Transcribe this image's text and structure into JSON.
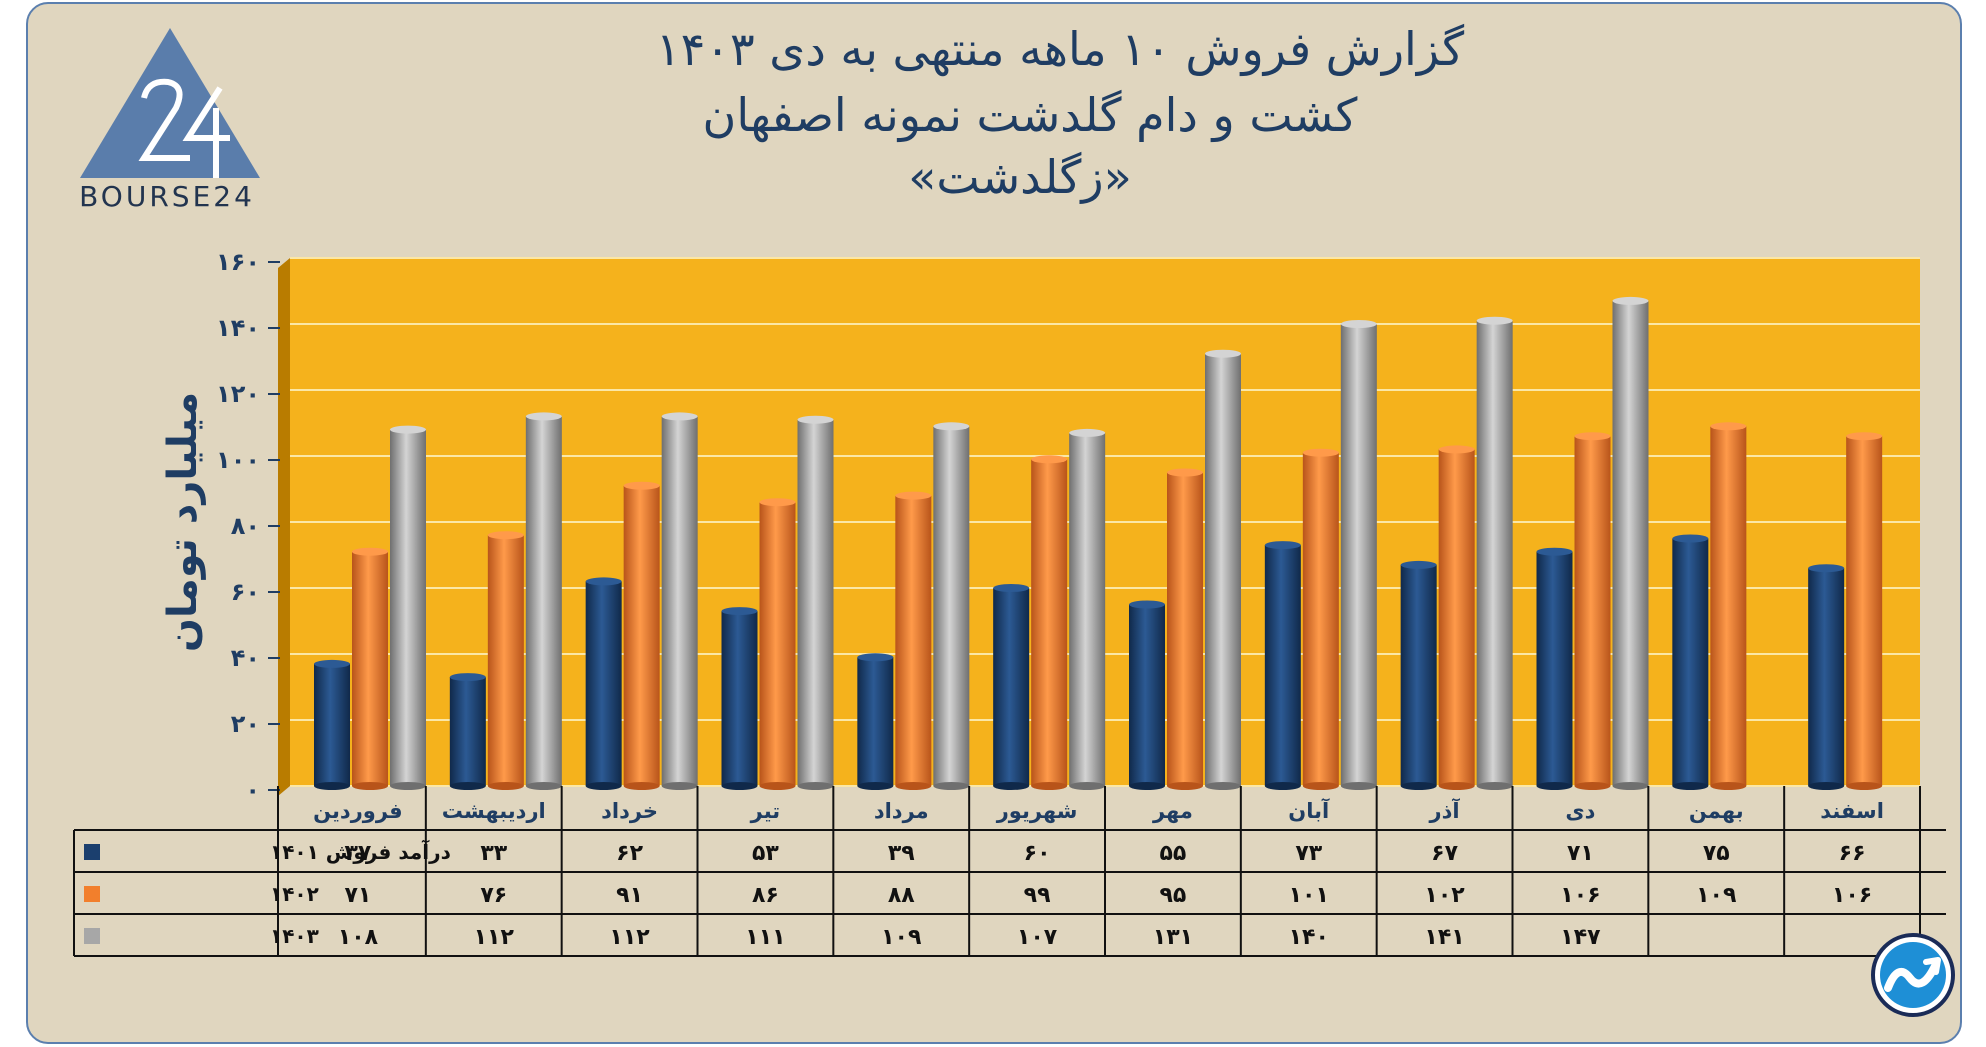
{
  "title": {
    "line1": "گزارش  فروش ۱۰ ماهه منتهی به دی ۱۴۰۳",
    "line2": "کشت و دام گلدشت نمونه اصفهان",
    "line3": "«زگلدشت»"
  },
  "logo": {
    "text": "BOURSE24"
  },
  "colors": {
    "series_1401": "#1b3f6e",
    "series_1402": "#f27f2c",
    "series_1403": "#a7a7a7",
    "plot_bg": "#f5b21c",
    "wall_side": "#b97c00",
    "frame_bg": "#e0d6bf",
    "axis_text": "#1f3d63"
  },
  "icons": {
    "corner_badge": "trend-chart-icon"
  },
  "chart_data": {
    "type": "bar",
    "ylabel": "میلیارد تومان",
    "ylim": [
      0,
      160
    ],
    "yticks": [
      "۰",
      "۲۰",
      "۴۰",
      "۶۰",
      "۸۰",
      "۱۰۰",
      "۱۲۰",
      "۱۴۰",
      "۱۶۰"
    ],
    "categories": [
      "فروردین",
      "اردیبهشت",
      "خرداد",
      "تیر",
      "مرداد",
      "شهریور",
      "مهر",
      "آبان",
      "آذر",
      "دی",
      "بهمن",
      "اسفند"
    ],
    "series": [
      {
        "name": "درآمد فروش ۱۴۰۱",
        "values": [
          37,
          33,
          62,
          53,
          39,
          60,
          55,
          73,
          67,
          71,
          75,
          66
        ],
        "labels": [
          "۳۷",
          "۳۳",
          "۶۲",
          "۵۳",
          "۳۹",
          "۶۰",
          "۵۵",
          "۷۳",
          "۶۷",
          "۷۱",
          "۷۵",
          "۶۶"
        ]
      },
      {
        "name": "۱۴۰۲",
        "values": [
          71,
          76,
          91,
          86,
          88,
          99,
          95,
          101,
          102,
          106,
          109,
          106
        ],
        "labels": [
          "۷۱",
          "۷۶",
          "۹۱",
          "۸۶",
          "۸۸",
          "۹۹",
          "۹۵",
          "۱۰۱",
          "۱۰۲",
          "۱۰۶",
          "۱۰۹",
          "۱۰۶"
        ]
      },
      {
        "name": "۱۴۰۳",
        "values": [
          108,
          112,
          112,
          111,
          109,
          107,
          131,
          140,
          141,
          147,
          null,
          null
        ],
        "labels": [
          "۱۰۸",
          "۱۱۲",
          "۱۱۲",
          "۱۱۱",
          "۱۰۹",
          "۱۰۷",
          "۱۳۱",
          "۱۴۰",
          "۱۴۱",
          "۱۴۷",
          "",
          ""
        ]
      }
    ],
    "grid": true,
    "data_table": true
  }
}
